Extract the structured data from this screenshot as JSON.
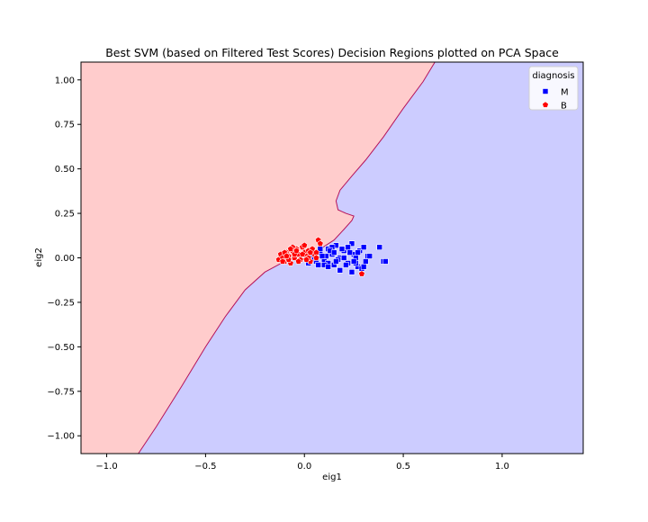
{
  "chart_data": {
    "type": "scatter",
    "title": "Best SVM (based on Filtered Test Scores) Decision Regions plotted on PCA Space",
    "xlabel": "eig1",
    "ylabel": "eig2",
    "xlim": [
      -1.13,
      1.41
    ],
    "ylim": [
      -1.1,
      1.1
    ],
    "x_ticks": [
      -1.0,
      -0.5,
      0.0,
      0.5,
      1.0
    ],
    "x_tick_labels": [
      "−1.0",
      "−0.5",
      "0.0",
      "0.5",
      "1.0"
    ],
    "y_ticks": [
      1.0,
      0.75,
      0.5,
      0.25,
      0.0,
      -0.25,
      -0.5,
      -0.75,
      -1.0
    ],
    "y_tick_labels": [
      "1.00",
      "0.75",
      "0.50",
      "0.25",
      "0.00",
      "−0.25",
      "−0.50",
      "−0.75",
      "−1.00"
    ],
    "grid": false,
    "legend": {
      "title": "diagnosis",
      "placement": "top-right"
    },
    "regions": [
      {
        "class": "B",
        "color": "#ffcccc",
        "side": "upper-left"
      },
      {
        "class": "M",
        "color": "#ccccff",
        "side": "lower-right"
      }
    ],
    "decision_boundary": {
      "color": "#b5135a",
      "points": [
        [
          -0.84,
          -1.1
        ],
        [
          -0.75,
          -0.95
        ],
        [
          -0.62,
          -0.72
        ],
        [
          -0.5,
          -0.5
        ],
        [
          -0.4,
          -0.33
        ],
        [
          -0.3,
          -0.18
        ],
        [
          -0.2,
          -0.08
        ],
        [
          -0.1,
          -0.02
        ],
        [
          0.0,
          0.02
        ],
        [
          0.08,
          0.05
        ],
        [
          0.15,
          0.1
        ],
        [
          0.2,
          0.16
        ],
        [
          0.24,
          0.21
        ],
        [
          0.25,
          0.235
        ],
        [
          0.21,
          0.25
        ],
        [
          0.17,
          0.27
        ],
        [
          0.16,
          0.32
        ],
        [
          0.18,
          0.38
        ],
        [
          0.24,
          0.46
        ],
        [
          0.31,
          0.55
        ],
        [
          0.4,
          0.68
        ],
        [
          0.5,
          0.84
        ],
        [
          0.6,
          0.99
        ],
        [
          0.66,
          1.1
        ]
      ]
    },
    "series": [
      {
        "name": "M",
        "color": "#0000ff",
        "marker": "square",
        "x": [
          0.05,
          0.08,
          0.1,
          0.12,
          0.14,
          0.15,
          0.16,
          0.18,
          0.2,
          0.22,
          0.24,
          0.25,
          0.27,
          0.28,
          0.3,
          0.31,
          0.32,
          0.12,
          0.14,
          0.17,
          0.19,
          0.21,
          0.23,
          0.26,
          0.29,
          0.11,
          0.13,
          0.18,
          0.06,
          0.04,
          0.02,
          0.07,
          0.09,
          0.24,
          0.27,
          0.3,
          0.33,
          0.38,
          0.4,
          0.41,
          0.22,
          0.15,
          0.1,
          0.2,
          0.26,
          0.16,
          0.08,
          0.12,
          0.03,
          0.25
        ],
        "y": [
          0.0,
          0.03,
          -0.02,
          0.05,
          0.02,
          -0.04,
          0.07,
          0.0,
          0.04,
          -0.03,
          0.08,
          0.02,
          -0.05,
          0.04,
          0.06,
          -0.02,
          0.01,
          -0.03,
          0.06,
          -0.01,
          0.05,
          -0.04,
          0.03,
          0.0,
          -0.06,
          0.01,
          0.04,
          -0.07,
          -0.02,
          0.02,
          -0.03,
          -0.04,
          0.01,
          -0.08,
          0.03,
          -0.05,
          0.01,
          0.06,
          -0.02,
          -0.02,
          0.06,
          0.03,
          -0.04,
          0.0,
          -0.03,
          -0.02,
          0.05,
          -0.05,
          0.03,
          -0.02
        ]
      },
      {
        "name": "B",
        "color": "#ff0000",
        "marker": "pentagon",
        "x": [
          -0.13,
          -0.12,
          -0.11,
          -0.1,
          -0.09,
          -0.08,
          -0.07,
          -0.06,
          -0.05,
          -0.04,
          -0.03,
          -0.02,
          -0.01,
          0.0,
          0.01,
          0.02,
          0.03,
          0.04,
          0.05,
          0.06,
          0.07,
          0.08,
          -0.1,
          -0.08,
          -0.05,
          -0.03,
          0.0,
          0.02,
          -0.06,
          -0.09,
          -0.04,
          -0.01,
          0.03,
          0.06,
          -0.11,
          -0.07,
          0.01,
          0.29
        ],
        "y": [
          -0.01,
          0.02,
          0.0,
          -0.02,
          0.03,
          0.01,
          -0.03,
          0.04,
          0.0,
          0.05,
          0.02,
          -0.01,
          0.06,
          0.03,
          0.01,
          0.04,
          -0.02,
          0.05,
          0.02,
          0.03,
          0.1,
          0.08,
          0.03,
          -0.01,
          0.02,
          -0.02,
          0.07,
          0.0,
          0.06,
          0.01,
          0.04,
          0.02,
          0.03,
          0.0,
          -0.02,
          0.05,
          -0.01,
          -0.09
        ]
      }
    ]
  }
}
